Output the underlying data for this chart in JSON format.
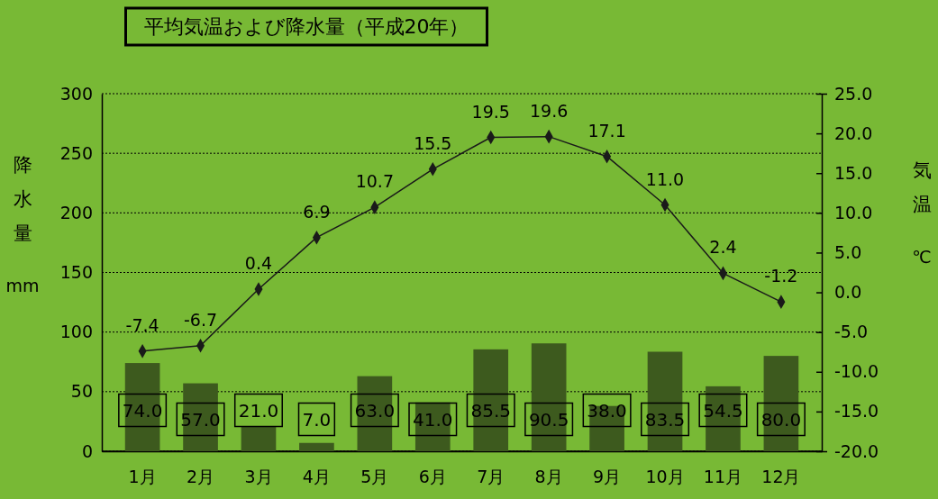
{
  "chart_data": {
    "type": "bar",
    "title": "平均気温および降水量（平成20年）",
    "ylabel": "降水量 mm",
    "y2label": "気温 ℃",
    "categories": [
      "1月",
      "2月",
      "3月",
      "4月",
      "5月",
      "6月",
      "7月",
      "8月",
      "9月",
      "10月",
      "11月",
      "12月"
    ],
    "series": [
      {
        "color": "#3d5a1e",
        "values": [
          74.0,
          57.0,
          21.0,
          7.0,
          63.0,
          41.0,
          85.5,
          90.5,
          38.0,
          83.5,
          54.5,
          80.0
        ],
        "value_labels": [
          "74.0",
          "57.0",
          "21.0",
          "7.0",
          "63.0",
          "41.0",
          "85.5",
          "90.5",
          "38.0",
          "83.5",
          "54.5",
          "80.0"
        ]
      },
      {
        "type": "line",
        "axis": "y2",
        "color": "#1a1a1a",
        "marker": "diamond",
        "line_style": "solid",
        "values": [
          -7.4,
          -6.7,
          0.4,
          6.9,
          10.7,
          15.5,
          19.5,
          19.6,
          17.1,
          11.0,
          2.4,
          -1.2
        ],
        "value_labels": [
          "-7.4",
          "-6.7",
          "0.4",
          "6.9",
          "10.7",
          "15.5",
          "19.5",
          "19.6",
          "17.1",
          "11.0",
          "2.4",
          "-1.2"
        ]
      }
    ],
    "ylim": [
      0,
      300
    ],
    "yticks": [
      0,
      50,
      100,
      150,
      200,
      250,
      300
    ],
    "y2lim": [
      -20,
      25
    ],
    "y2ticks": [
      {
        "value": -20,
        "label": "-20.0"
      },
      {
        "value": -15,
        "label": "-15.0"
      },
      {
        "value": -10,
        "label": "-10.0"
      },
      {
        "value": -5,
        "label": "-5.0"
      },
      {
        "value": 0,
        "label": "0.0"
      },
      {
        "value": 5,
        "label": "5.0"
      },
      {
        "value": 10,
        "label": "10.0"
      },
      {
        "value": 15,
        "label": "15.0"
      },
      {
        "value": 20,
        "label": "20.0"
      },
      {
        "value": 25,
        "label": "25.0"
      }
    ],
    "grid": "y"
  }
}
